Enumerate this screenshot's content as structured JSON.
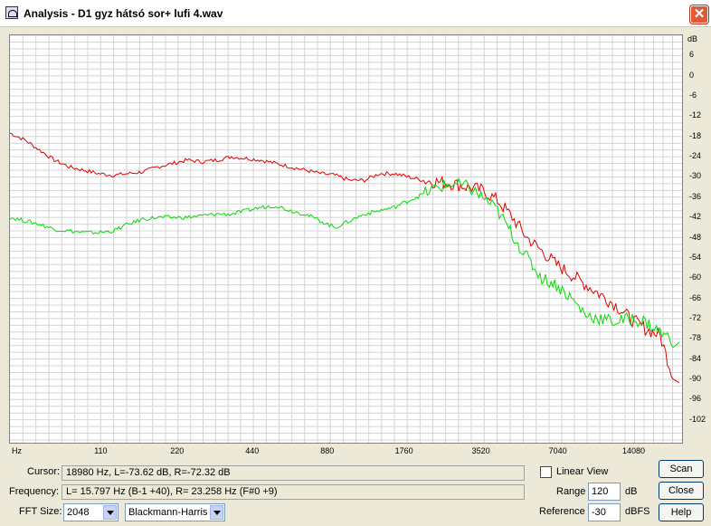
{
  "window": {
    "title": "Analysis - D1 gyz hátsó sor+ lufi 4.wav",
    "close_glyph": "✕"
  },
  "chart_data": {
    "type": "line",
    "y_unit": "dB",
    "ylim": [
      -108,
      12
    ],
    "y_ticks": [
      6,
      0,
      -6,
      -12,
      -18,
      -24,
      -30,
      -36,
      -42,
      -48,
      -54,
      -60,
      -66,
      -72,
      -78,
      -84,
      -90,
      -96,
      -102
    ],
    "x_unit": "Hz",
    "x_tick_labels": [
      "110",
      "220",
      "440",
      "880",
      "1760",
      "3520",
      "7040",
      "14080"
    ],
    "grid": true,
    "series": [
      {
        "color": "#e00000",
        "values": [
          -17,
          -19,
          -22,
          -25,
          -27,
          -28,
          -29,
          -29.5,
          -29,
          -28.5,
          -27,
          -26,
          -25,
          -25.5,
          -25,
          -24,
          -24.5,
          -25,
          -26,
          -27,
          -28,
          -29,
          -29.5,
          -31,
          -31,
          -29,
          -29,
          -30,
          -31,
          -31.5,
          -32,
          -33,
          -34,
          -37,
          -42,
          -48,
          -52,
          -56,
          -59,
          -62,
          -65,
          -68,
          -72,
          -75,
          -77,
          -91
        ]
      },
      {
        "color": "#00dd00",
        "values": [
          -42,
          -43,
          -44,
          -45.5,
          -46,
          -46.5,
          -46.5,
          -46,
          -44,
          -42.5,
          -42,
          -42,
          -42,
          -41.5,
          -41,
          -41,
          -40,
          -39,
          -38.5,
          -40,
          -41,
          -43,
          -45,
          -43,
          -41,
          -40,
          -39,
          -37,
          -35,
          -33,
          -32,
          -33,
          -36,
          -40,
          -47,
          -54,
          -60,
          -62,
          -66,
          -71,
          -72,
          -73,
          -72,
          -73,
          -76,
          -79
        ]
      }
    ]
  },
  "cursor": {
    "label": "Cursor:",
    "value": "18980 Hz, L=-73.62 dB, R=-72.32 dB"
  },
  "frequency": {
    "label": "Frequency:",
    "value": "L= 15.797 Hz (B-1 +40), R= 23.258 Hz (F#0 +9)"
  },
  "fft": {
    "label": "FFT Size:",
    "size": "2048",
    "window": "Blackmann-Harris"
  },
  "linear_view": {
    "label": "Linear View",
    "checked": false
  },
  "range": {
    "label": "Range",
    "value": "120",
    "unit": "dB"
  },
  "reference": {
    "label": "Reference",
    "value": "-30",
    "unit": "dBFS"
  },
  "buttons": {
    "scan": "Scan",
    "close": "Close",
    "help": "Help"
  }
}
